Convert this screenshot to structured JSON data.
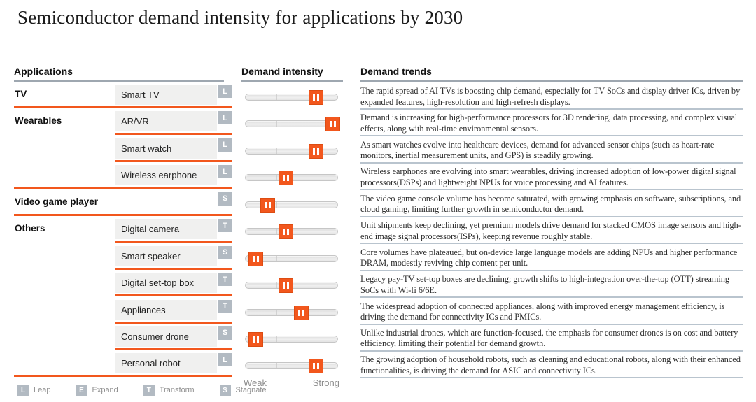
{
  "title": "Semiconductor demand intensity for applications by 2030",
  "columns": {
    "applications": "Applications",
    "intensity": "Demand intensity",
    "trends": "Demand trends"
  },
  "scale": {
    "weak": "Weak",
    "strong": "Strong"
  },
  "legend": [
    {
      "code": "L",
      "label": "Leap"
    },
    {
      "code": "E",
      "label": "Expand"
    },
    {
      "code": "T",
      "label": "Transform"
    },
    {
      "code": "S",
      "label": "Stagnate"
    }
  ],
  "colors": {
    "accent_orange": "#f2571d",
    "badge_gray": "#b2bac2",
    "header_rule_gray": "#9ea7b0",
    "trend_rule_gray": "#b9c4ce",
    "app_box_bg": "#f0f0ef"
  },
  "chart_data": {
    "type": "table",
    "intensity_axis": {
      "min_label": "Weak",
      "max_label": "Strong",
      "range": [
        0,
        1
      ]
    },
    "badge_legend": {
      "L": "Leap",
      "E": "Expand",
      "T": "Transform",
      "S": "Stagnate"
    },
    "rows": [
      {
        "category": "TV",
        "application": "Smart TV",
        "badge": "L",
        "intensity": 0.77,
        "category_end": true,
        "full_width_category": false,
        "trend": "The rapid spread of AI TVs is boosting chip demand, especially for TV SoCs and display driver ICs, driven by expanded features, high-resolution and high-refresh displays."
      },
      {
        "category": "Wearables",
        "application": "AR/VR",
        "badge": "L",
        "intensity": 0.95,
        "category_end": false,
        "full_width_category": false,
        "trend": "Demand is increasing for high-performance processors for 3D rendering, data processing, and complex visual effects, along with real-time environmental sensors."
      },
      {
        "category": "",
        "application": "Smart watch",
        "badge": "L",
        "intensity": 0.77,
        "category_end": false,
        "full_width_category": false,
        "trend": "As smart watches evolve into healthcare devices, demand for advanced sensor chips (such as heart-rate monitors, inertial measurement units, and GPS) is steadily growing."
      },
      {
        "category": "",
        "application": "Wireless earphone",
        "badge": "L",
        "intensity": 0.44,
        "category_end": true,
        "full_width_category": false,
        "trend": "Wireless earphones are evolving into smart wearables, driving increased adoption of low-power digital signal processors(DSPs) and lightweight NPUs for voice processing and AI features."
      },
      {
        "category": "Video game player",
        "application": "",
        "badge": "S",
        "intensity": 0.24,
        "category_end": true,
        "full_width_category": true,
        "trend": "The video game console volume has become saturated, with growing emphasis on software, subscriptions, and cloud gaming, limiting further growth in semiconductor demand."
      },
      {
        "category": "Others",
        "application": "Digital camera",
        "badge": "T",
        "intensity": 0.44,
        "category_end": false,
        "full_width_category": false,
        "trend": "Unit shipments keep declining, yet premium models drive demand for stacked CMOS image sensors and high-end image signal processors(ISPs), keeping revenue roughly stable."
      },
      {
        "category": "",
        "application": "Smart speaker",
        "badge": "S",
        "intensity": 0.11,
        "category_end": false,
        "full_width_category": false,
        "trend": "Core volumes have plateaued, but on-device large language models are adding NPUs and higher performance DRAM, modestly reviving chip content per unit."
      },
      {
        "category": "",
        "application": "Digital set-top box",
        "badge": "T",
        "intensity": 0.44,
        "category_end": false,
        "full_width_category": false,
        "trend": "Legacy pay-TV set-top boxes are declining; growth shifts to high-integration over-the-top (OTT) streaming SoCs with Wi-fi 6/6E."
      },
      {
        "category": "",
        "application": "Appliances",
        "badge": "T",
        "intensity": 0.61,
        "category_end": false,
        "full_width_category": false,
        "trend": "The widespread adoption of connected appliances, along with improved energy management efficiency, is driving the demand for connectivity ICs and PMICs."
      },
      {
        "category": "",
        "application": "Consumer drone",
        "badge": "S",
        "intensity": 0.11,
        "category_end": false,
        "full_width_category": false,
        "trend": "Unlike industrial drones, which are function-focused, the emphasis for consumer drones is on cost and battery efficiency, limiting their potential for demand growth."
      },
      {
        "category": "",
        "application": "Personal robot",
        "badge": "L",
        "intensity": 0.77,
        "category_end": true,
        "full_width_category": false,
        "trend": "The growing adoption of household robots, such as cleaning and educational robots, along with their enhanced functionalities, is driving the demand for ASIC and connectivity ICs."
      }
    ]
  }
}
